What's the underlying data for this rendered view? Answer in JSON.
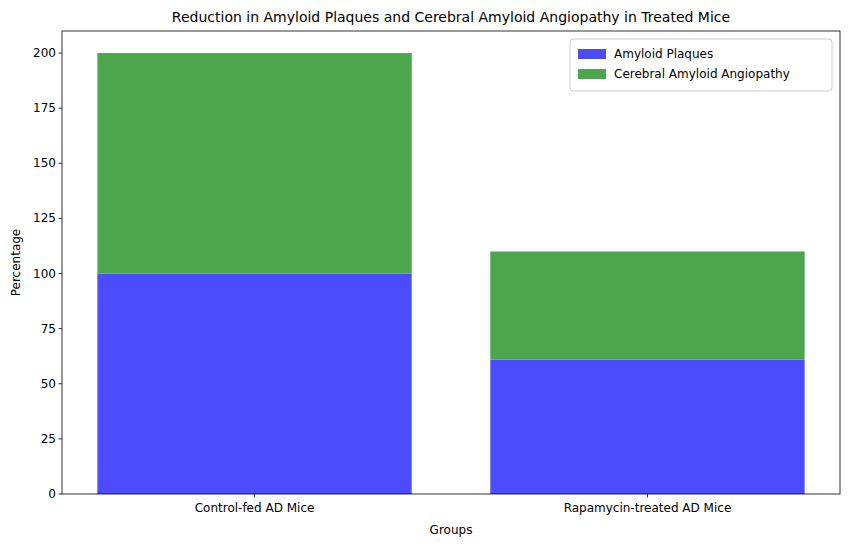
{
  "chart_data": {
    "type": "bar",
    "stacked": true,
    "title": "Reduction in Amyloid Plaques and Cerebral Amyloid Angiopathy in Treated Mice",
    "x_label": "Groups",
    "y_label": "Percentage",
    "categories": [
      "Control-fed AD Mice",
      "Rapamycin-treated AD Mice"
    ],
    "series": [
      {
        "name": "Amyloid Plaques",
        "color": "#4c4cff",
        "values": [
          100,
          61
        ]
      },
      {
        "name": "Cerebral Amyloid Angiopathy",
        "color": "#4ca64c",
        "values": [
          100,
          49
        ]
      }
    ],
    "ylim": [
      0,
      210
    ],
    "yticks": [
      0,
      25,
      50,
      75,
      100,
      125,
      150,
      175,
      200
    ],
    "legend": "upper right",
    "grid": false
  }
}
